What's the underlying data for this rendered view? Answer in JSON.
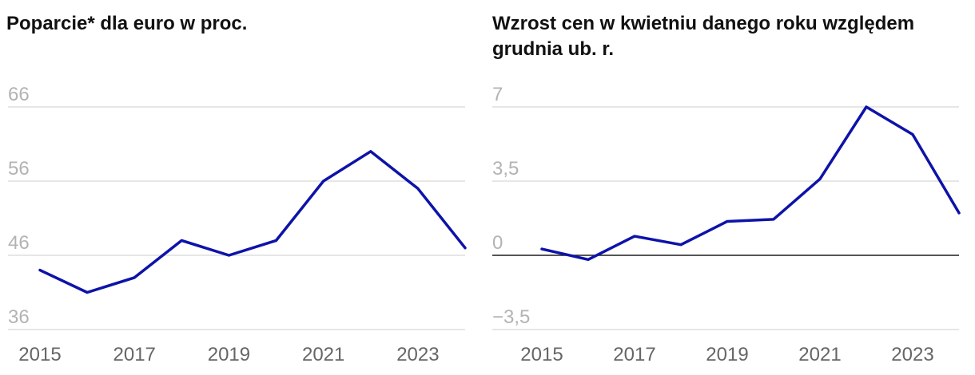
{
  "chart_data": [
    {
      "type": "line",
      "title": "Poparcie* dla euro w proc.",
      "x": [
        2015,
        2016,
        2017,
        2018,
        2019,
        2020,
        2021,
        2022,
        2023,
        2024
      ],
      "series": [
        {
          "values": [
            44,
            41,
            43,
            48,
            46,
            48,
            56,
            60,
            55,
            47
          ]
        }
      ],
      "ylim": [
        36,
        66
      ],
      "yticks": [
        36,
        46,
        56,
        66
      ],
      "ytick_labels": [
        "36",
        "46",
        "56",
        "66"
      ],
      "xticks": [
        2015,
        2017,
        2019,
        2021,
        2023
      ],
      "xtick_labels": [
        "2015",
        "2017",
        "2019",
        "2021",
        "2023"
      ],
      "xlim": [
        2015,
        2024
      ],
      "grid": true,
      "color": "#0d13a8"
    },
    {
      "type": "line",
      "title": "Wzrost cen w kwietniu danego roku względem grudnia ub. r.",
      "x": [
        2015,
        2016,
        2017,
        2018,
        2019,
        2020,
        2021,
        2022,
        2023,
        2024
      ],
      "series": [
        {
          "values": [
            0.3,
            -0.2,
            0.9,
            0.5,
            1.6,
            1.7,
            3.6,
            7.0,
            5.7,
            2.0
          ]
        }
      ],
      "ylim": [
        -3.5,
        7
      ],
      "yticks": [
        -3.5,
        0,
        3.5,
        7
      ],
      "ytick_labels": [
        "−3,5",
        "0",
        "3,5",
        "7"
      ],
      "xticks": [
        2015,
        2017,
        2019,
        2021,
        2023
      ],
      "xtick_labels": [
        "2015",
        "2017",
        "2019",
        "2021",
        "2023"
      ],
      "xlim": [
        2015,
        2024
      ],
      "grid": true,
      "zero_line": true,
      "color": "#0d13a8"
    }
  ]
}
